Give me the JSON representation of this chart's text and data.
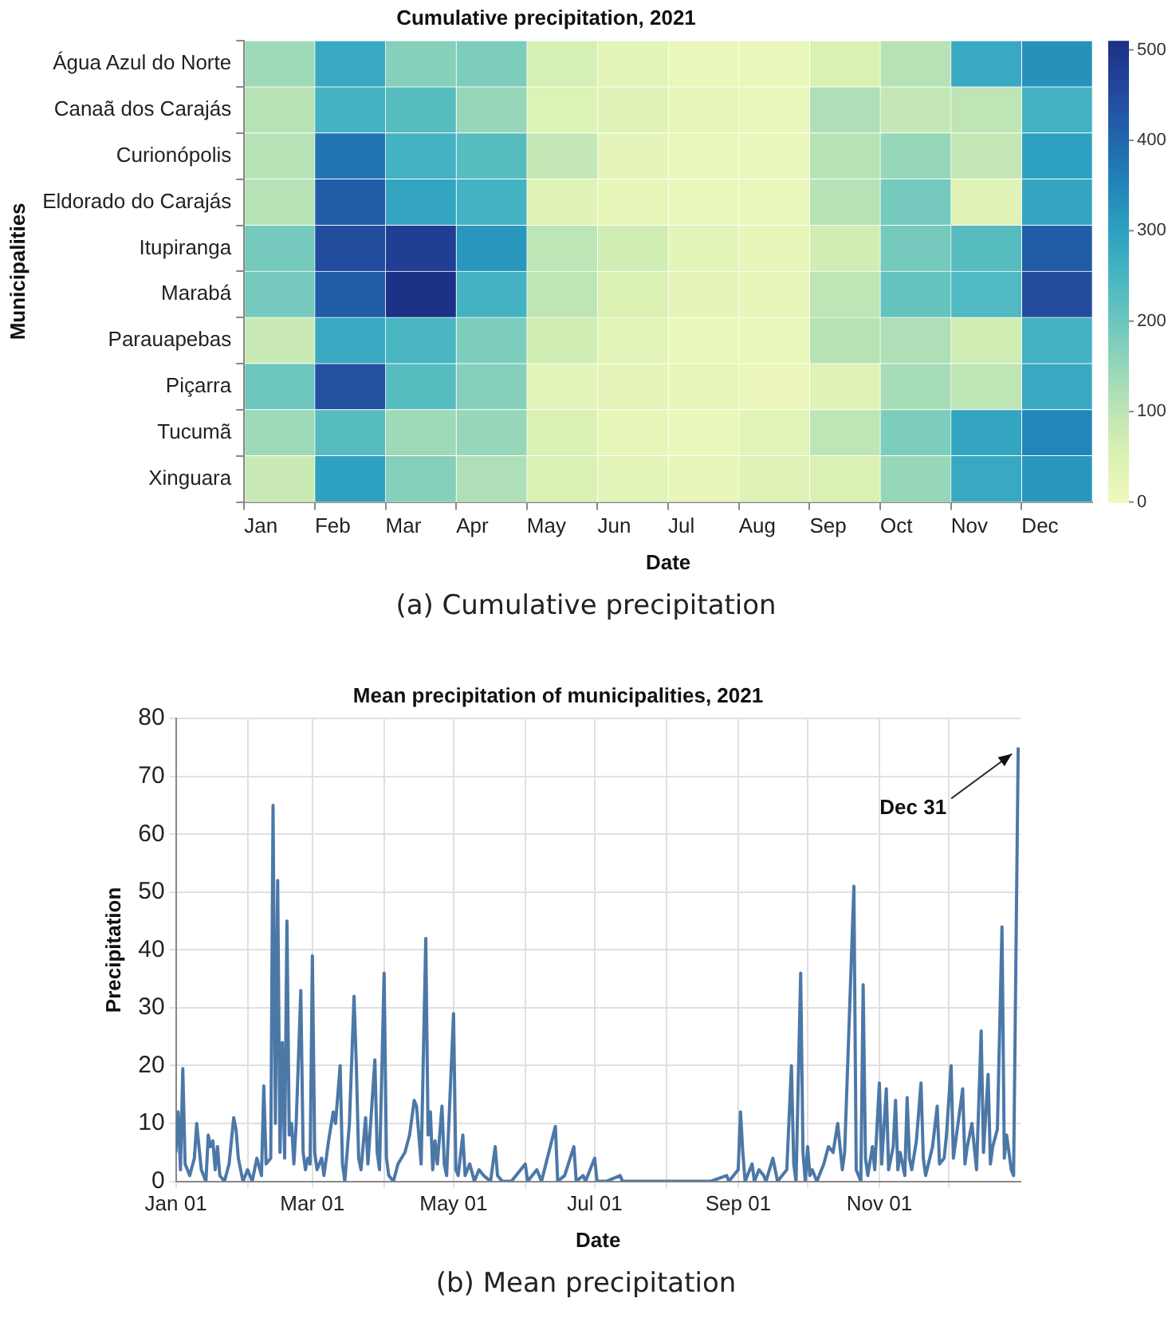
{
  "chart_data": [
    {
      "type": "heatmap",
      "title": "Cumulative precipitation, 2021",
      "xlabel": "Date",
      "ylabel": "Municipalities",
      "categories": [
        "Jan",
        "Feb",
        "Mar",
        "Apr",
        "May",
        "Jun",
        "Jul",
        "Aug",
        "Sep",
        "Oct",
        "Nov",
        "Dec"
      ],
      "y_categories": [
        "Água Azul do Norte",
        "Canaã dos Carajás",
        "Curionópolis",
        "Eldorado do Carajás",
        "Itupiranga",
        "Marabá",
        "Parauapebas",
        "Piçarra",
        "Tucumã",
        "Xinguara"
      ],
      "cells": [
        [
          140,
          280,
          170,
          180,
          60,
          30,
          15,
          15,
          50,
          110,
          280,
          330
        ],
        [
          110,
          260,
          230,
          150,
          45,
          40,
          20,
          15,
          120,
          90,
          100,
          260
        ],
        [
          110,
          380,
          260,
          230,
          90,
          25,
          15,
          15,
          110,
          150,
          90,
          300
        ],
        [
          110,
          420,
          290,
          260,
          40,
          20,
          15,
          15,
          110,
          190,
          40,
          290
        ],
        [
          190,
          450,
          480,
          320,
          100,
          70,
          30,
          20,
          70,
          190,
          230,
          420
        ],
        [
          190,
          420,
          510,
          260,
          100,
          50,
          25,
          20,
          100,
          210,
          240,
          450
        ],
        [
          80,
          280,
          250,
          180,
          70,
          30,
          15,
          15,
          110,
          120,
          70,
          260
        ],
        [
          200,
          440,
          230,
          170,
          30,
          25,
          20,
          10,
          40,
          130,
          100,
          280
        ],
        [
          140,
          230,
          140,
          150,
          50,
          20,
          15,
          30,
          100,
          180,
          290,
          350
        ],
        [
          80,
          300,
          170,
          120,
          50,
          30,
          20,
          40,
          50,
          150,
          280,
          320
        ]
      ],
      "clim": [
        0,
        510
      ],
      "cticks": [
        0,
        100,
        200,
        300,
        400,
        500
      ],
      "annotations": [
        "(a) Cumulative precipitation"
      ]
    },
    {
      "type": "line",
      "title": "Mean precipitation of municipalities, 2021",
      "xlabel": "Date",
      "ylabel": "Precipitation",
      "xlim": [
        "2021-01-01",
        "2022-01-01"
      ],
      "xticks": [
        {
          "value": "2021-01-01",
          "label": "Jan 01"
        },
        {
          "value": "2021-02-01",
          "label": null
        },
        {
          "value": "2021-03-01",
          "label": "Mar 01"
        },
        {
          "value": "2021-04-01",
          "label": null
        },
        {
          "value": "2021-05-01",
          "label": "May 01"
        },
        {
          "value": "2021-06-01",
          "label": null
        },
        {
          "value": "2021-07-01",
          "label": "Jul 01"
        },
        {
          "value": "2021-08-01",
          "label": null
        },
        {
          "value": "2021-09-01",
          "label": "Sep 01"
        },
        {
          "value": "2021-10-01",
          "label": null
        },
        {
          "value": "2021-11-01",
          "label": "Nov 01"
        },
        {
          "value": "2021-12-01",
          "label": null
        }
      ],
      "ylim": [
        0,
        80
      ],
      "yticks": [
        0,
        10,
        20,
        30,
        40,
        50,
        60,
        70,
        80
      ],
      "grid": true,
      "marker": "none",
      "line_style": "solid",
      "series": [
        {
          "color": "#4c78a8",
          "x": [
            "2021-01-01",
            "2021-01-02",
            "2021-01-03",
            "2021-01-04",
            "2021-01-05",
            "2021-01-07",
            "2021-01-09",
            "2021-01-10",
            "2021-01-12",
            "2021-01-14",
            "2021-01-15",
            "2021-01-16",
            "2021-01-17",
            "2021-01-18",
            "2021-01-19",
            "2021-01-20",
            "2021-01-22",
            "2021-01-24",
            "2021-01-26",
            "2021-01-27",
            "2021-01-28",
            "2021-01-30",
            "2021-02-01",
            "2021-02-03",
            "2021-02-05",
            "2021-02-07",
            "2021-02-08",
            "2021-02-09",
            "2021-02-11",
            "2021-02-12",
            "2021-02-13",
            "2021-02-14",
            "2021-02-15",
            "2021-02-16",
            "2021-02-17",
            "2021-02-18",
            "2021-02-19",
            "2021-02-20",
            "2021-02-21",
            "2021-02-22",
            "2021-02-24",
            "2021-02-25",
            "2021-02-26",
            "2021-02-27",
            "2021-02-28",
            "2021-03-01",
            "2021-03-02",
            "2021-03-03",
            "2021-03-05",
            "2021-03-06",
            "2021-03-08",
            "2021-03-10",
            "2021-03-11",
            "2021-03-13",
            "2021-03-14",
            "2021-03-15",
            "2021-03-17",
            "2021-03-19",
            "2021-03-20",
            "2021-03-21",
            "2021-03-22",
            "2021-03-24",
            "2021-03-25",
            "2021-03-28",
            "2021-03-29",
            "2021-03-30",
            "2021-04-01",
            "2021-04-02",
            "2021-04-03",
            "2021-04-05",
            "2021-04-07",
            "2021-04-10",
            "2021-04-12",
            "2021-04-14",
            "2021-04-15",
            "2021-04-17",
            "2021-04-19",
            "2021-04-20",
            "2021-04-21",
            "2021-04-22",
            "2021-04-23",
            "2021-04-24",
            "2021-04-26",
            "2021-04-27",
            "2021-04-28",
            "2021-05-01",
            "2021-05-02",
            "2021-05-03",
            "2021-05-05",
            "2021-05-06",
            "2021-05-08",
            "2021-05-10",
            "2021-05-12",
            "2021-05-14",
            "2021-05-17",
            "2021-05-19",
            "2021-05-20",
            "2021-05-22",
            "2021-05-26",
            "2021-06-01",
            "2021-06-02",
            "2021-06-06",
            "2021-06-08",
            "2021-06-14",
            "2021-06-15",
            "2021-06-18",
            "2021-06-22",
            "2021-06-23",
            "2021-06-26",
            "2021-06-27",
            "2021-07-01",
            "2021-07-02",
            "2021-07-06",
            "2021-07-12",
            "2021-07-13",
            "2021-07-20",
            "2021-08-01",
            "2021-08-10",
            "2021-08-20",
            "2021-08-27",
            "2021-08-28",
            "2021-09-01",
            "2021-09-02",
            "2021-09-03",
            "2021-09-04",
            "2021-09-07",
            "2021-09-08",
            "2021-09-10",
            "2021-09-12",
            "2021-09-13",
            "2021-09-16",
            "2021-09-18",
            "2021-09-22",
            "2021-09-24",
            "2021-09-25",
            "2021-09-26",
            "2021-09-28",
            "2021-09-29",
            "2021-09-30",
            "2021-10-01",
            "2021-10-02",
            "2021-10-03",
            "2021-10-05",
            "2021-10-08",
            "2021-10-10",
            "2021-10-12",
            "2021-10-14",
            "2021-10-16",
            "2021-10-17",
            "2021-10-21",
            "2021-10-22",
            "2021-10-24",
            "2021-10-25",
            "2021-10-26",
            "2021-10-27",
            "2021-10-29",
            "2021-10-30",
            "2021-11-01",
            "2021-11-02",
            "2021-11-04",
            "2021-11-05",
            "2021-11-07",
            "2021-11-08",
            "2021-11-09",
            "2021-11-10",
            "2021-11-12",
            "2021-11-13",
            "2021-11-14",
            "2021-11-15",
            "2021-11-17",
            "2021-11-19",
            "2021-11-20",
            "2021-11-21",
            "2021-11-24",
            "2021-11-26",
            "2021-11-27",
            "2021-11-29",
            "2021-11-30",
            "2021-12-02",
            "2021-12-03",
            "2021-12-05",
            "2021-12-07",
            "2021-12-08",
            "2021-12-09",
            "2021-12-11",
            "2021-12-13",
            "2021-12-15",
            "2021-12-16",
            "2021-12-18",
            "2021-12-19",
            "2021-12-20",
            "2021-12-22",
            "2021-12-24",
            "2021-12-25",
            "2021-12-26",
            "2021-12-28",
            "2021-12-29",
            "2021-12-31"
          ],
          "values": [
            5,
            12,
            2,
            19.5,
            3,
            1,
            4,
            10,
            2,
            0,
            8,
            6,
            7,
            2,
            6,
            1,
            0,
            3,
            11,
            9,
            4,
            0,
            2,
            0,
            4,
            1,
            16.5,
            3,
            4,
            65,
            10,
            52,
            5,
            24,
            4,
            45,
            8,
            10,
            3,
            10,
            33,
            5,
            2,
            4,
            3,
            39,
            5,
            2,
            4,
            1,
            7,
            12,
            10,
            20,
            3,
            0,
            10,
            32,
            20,
            4,
            2,
            11,
            3,
            21,
            5,
            2,
            36,
            4,
            1,
            0,
            3,
            5,
            8,
            14,
            13,
            3,
            42,
            8,
            12,
            2,
            7,
            3,
            13,
            3,
            1,
            29,
            2,
            1,
            8,
            1,
            3,
            0,
            2,
            1,
            0,
            6,
            1,
            0,
            0,
            3,
            0,
            2,
            0,
            9.5,
            0,
            1,
            6,
            0,
            1,
            0,
            4,
            0,
            0,
            1,
            0,
            0,
            0,
            0,
            0,
            1,
            0,
            2,
            12,
            5,
            0,
            3,
            0,
            2,
            1,
            0,
            4,
            0,
            2,
            20,
            3,
            0,
            36,
            5,
            0,
            6,
            1,
            2,
            0,
            3,
            6,
            5,
            10,
            2,
            5,
            51,
            2,
            0,
            34,
            4,
            1,
            6,
            2,
            17,
            3,
            16,
            2,
            6,
            14,
            2,
            5,
            1,
            14.5,
            4,
            2,
            7,
            17,
            4,
            1,
            6,
            13,
            3,
            4,
            8,
            20,
            4,
            10,
            16,
            3,
            6,
            10,
            2,
            26,
            5,
            18.5,
            3,
            6,
            9,
            44,
            4,
            8,
            2,
            1,
            75
          ]
        }
      ],
      "annotations": [
        {
          "text": "Dec 31",
          "x": "2021-12-31",
          "y": 75
        },
        "(b) Mean precipitation"
      ]
    }
  ]
}
